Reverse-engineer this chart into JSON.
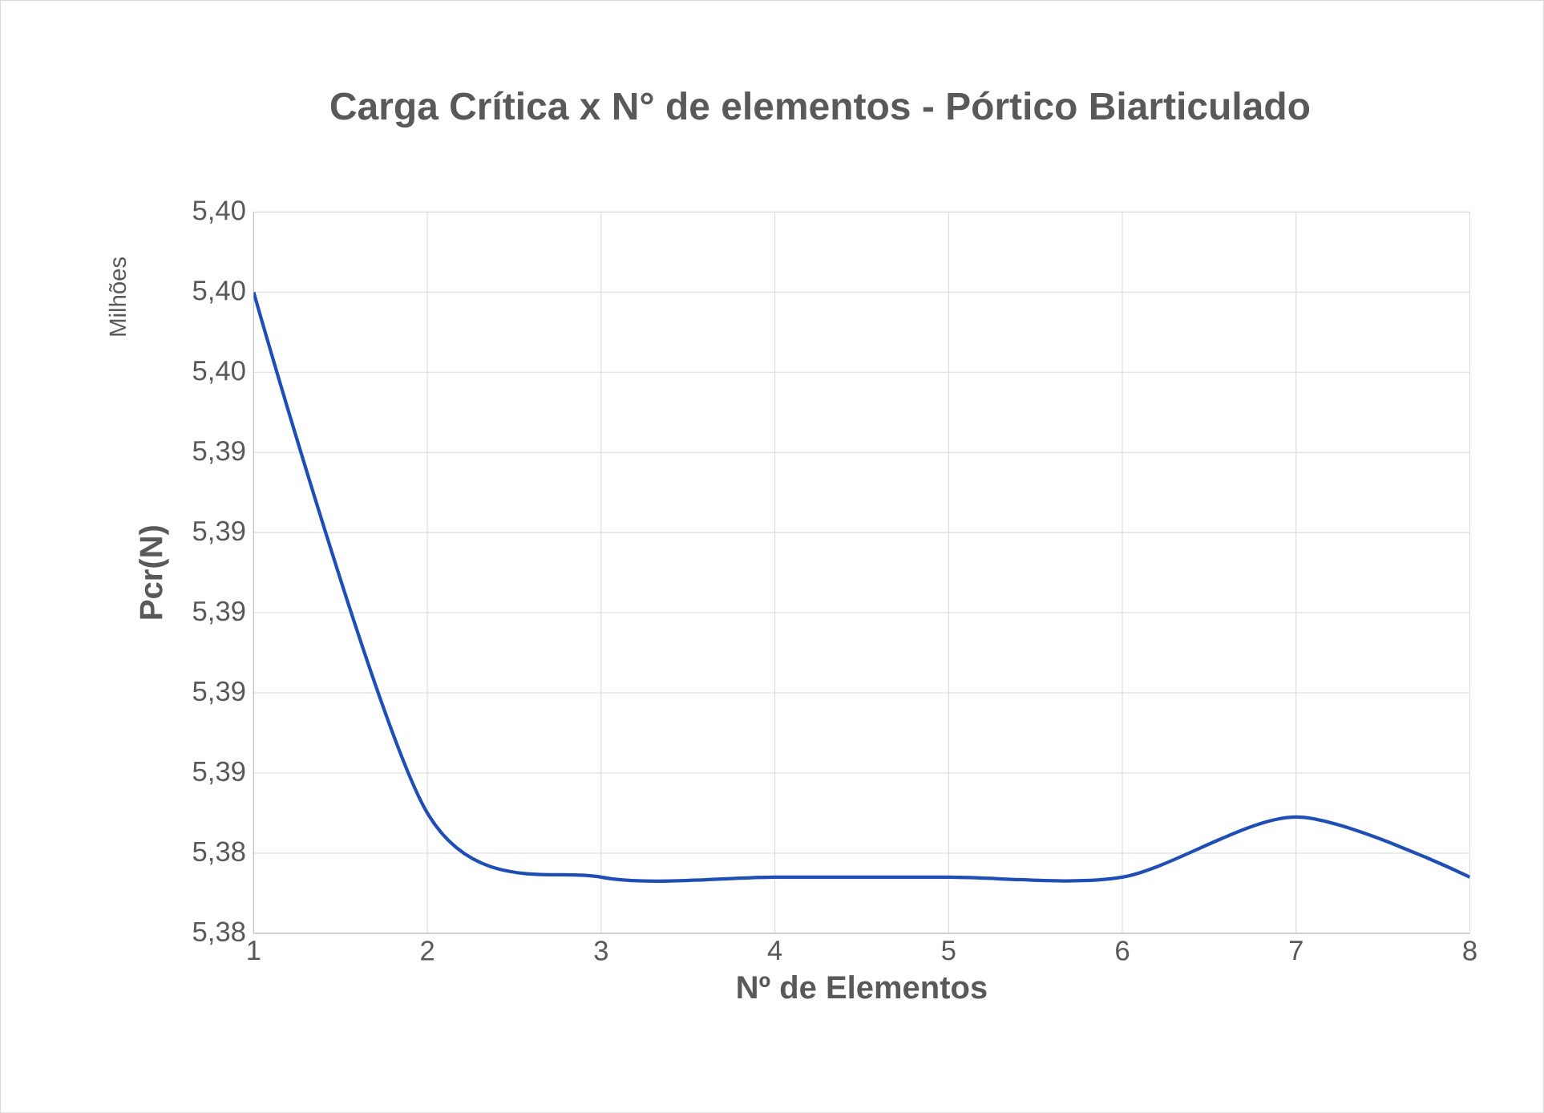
{
  "chart_data": {
    "type": "line",
    "title": "Carga Crítica x N° de elementos - Pórtico Biarticulado",
    "xlabel": "Nº de Elementos",
    "ylabel": "Pcr(N)",
    "annotations": [
      "Milhões"
    ],
    "x": [
      1,
      2,
      3,
      4,
      5,
      6,
      7,
      8
    ],
    "series": [
      {
        "color": "#1f4fb5",
        "values": [
          5.398,
          5.385,
          5.3834,
          5.3834,
          5.3834,
          5.3834,
          5.3849,
          5.3834
        ]
      }
    ],
    "xlim": [
      1,
      8
    ],
    "xticks": [
      1,
      2,
      3,
      4,
      5,
      6,
      7,
      8
    ],
    "ylim": [
      5.382,
      5.4
    ],
    "yticks": [
      {
        "value": 5.382,
        "label": "5,38"
      },
      {
        "value": 5.384,
        "label": "5,38"
      },
      {
        "value": 5.386,
        "label": "5,39"
      },
      {
        "value": 5.388,
        "label": "5,39"
      },
      {
        "value": 5.39,
        "label": "5,39"
      },
      {
        "value": 5.392,
        "label": "5,39"
      },
      {
        "value": 5.394,
        "label": "5,39"
      },
      {
        "value": 5.396,
        "label": "5,40"
      },
      {
        "value": 5.398,
        "label": "5,40"
      },
      {
        "value": 5.4,
        "label": "5,40"
      }
    ],
    "grid": true,
    "marker": "none",
    "line_style": "solid"
  }
}
